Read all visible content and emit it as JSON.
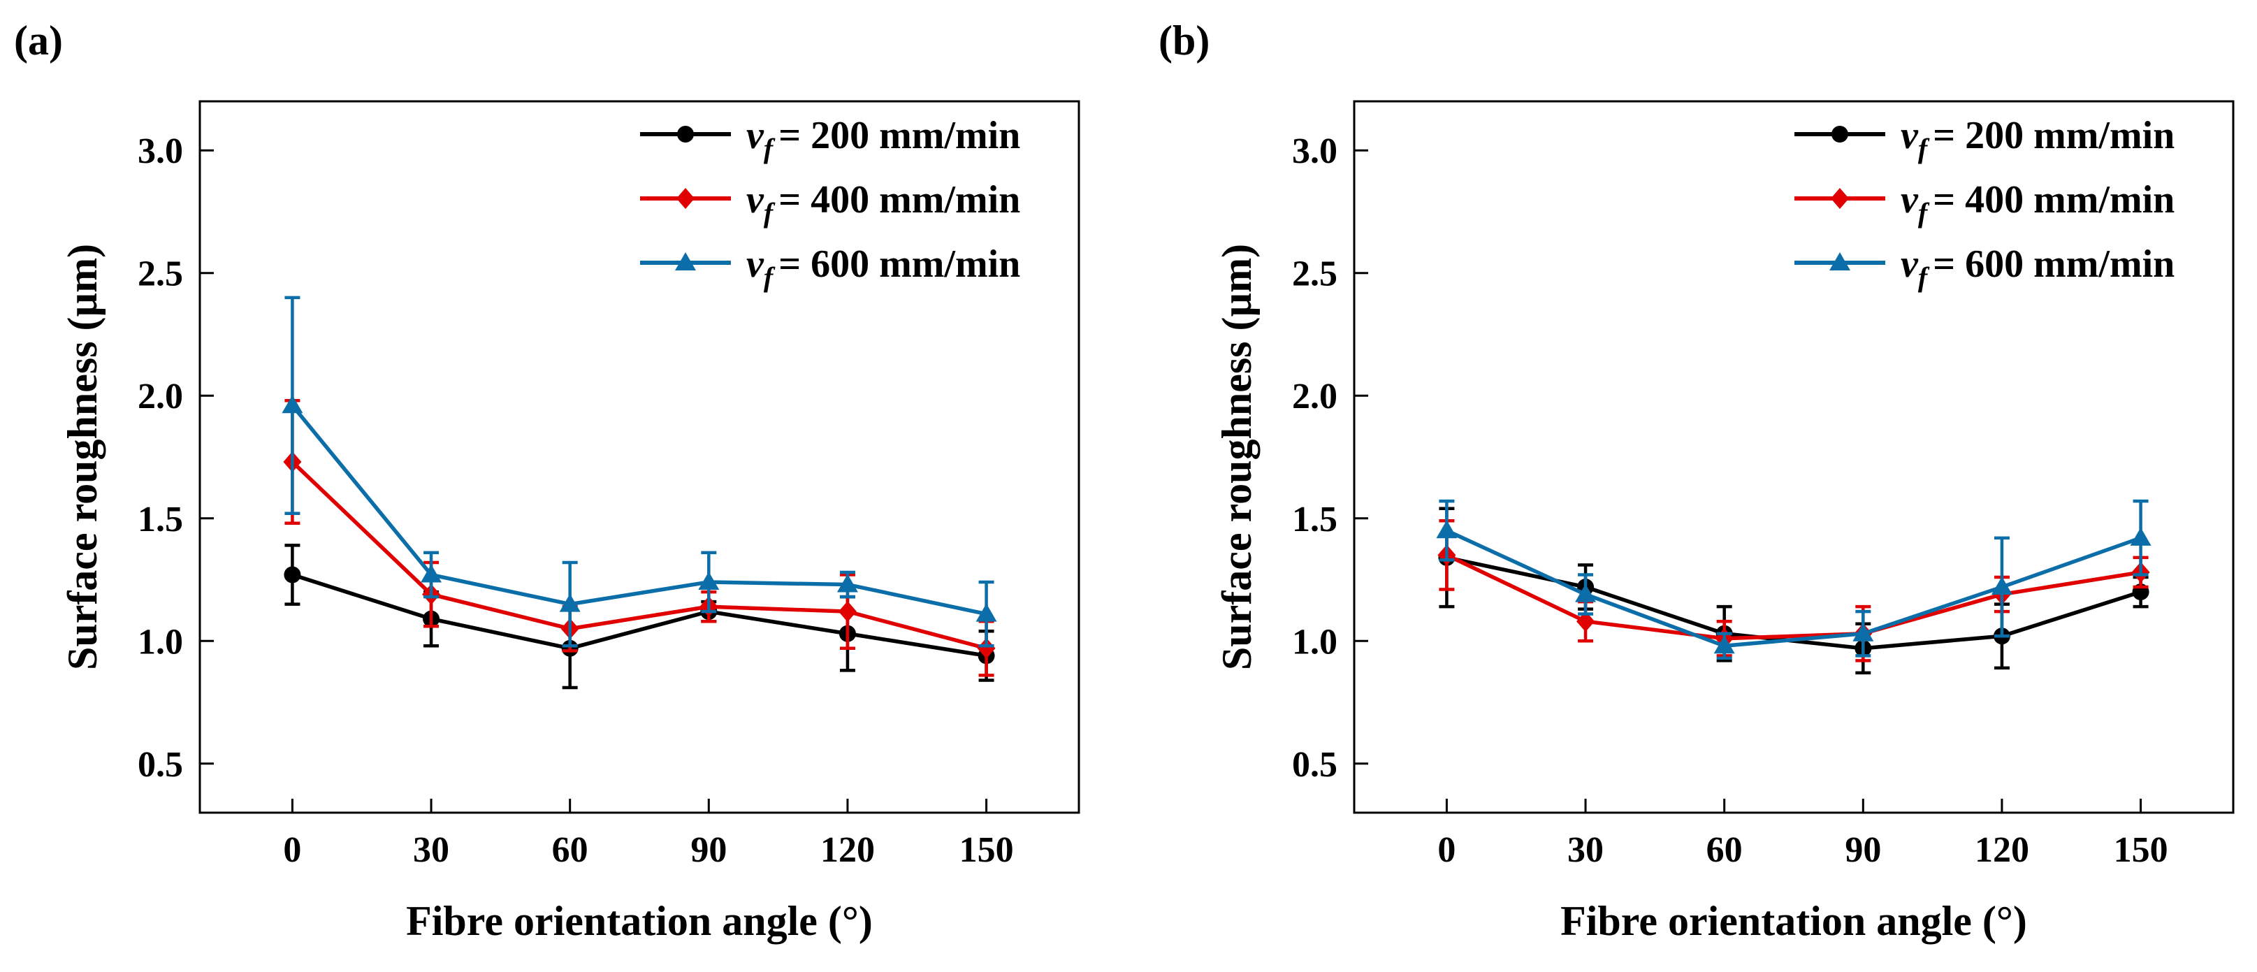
{
  "panels": [
    {
      "label": "(a)",
      "chart_data": {
        "type": "line",
        "xlabel": "Fibre orientation angle (°)",
        "ylabel": "Surface roughness (µm)",
        "x": [
          0,
          30,
          60,
          90,
          120,
          150
        ],
        "xlim": [
          -20,
          170
        ],
        "ylim": [
          0.3,
          3.2
        ],
        "xticks": [
          0,
          30,
          60,
          90,
          120,
          150
        ],
        "yticks": [
          0.5,
          1.0,
          1.5,
          2.0,
          2.5,
          3.0
        ],
        "xtick_labels": [
          "0",
          "30",
          "60",
          "90",
          "120",
          "150"
        ],
        "ytick_labels": [
          "0.5",
          "1.0",
          "1.5",
          "2.0",
          "2.5",
          "3.0"
        ],
        "grid": false,
        "legend_position": "top-right",
        "series": [
          {
            "name": "= 200 mm/min",
            "color": "#000000",
            "marker": "circle",
            "values": [
              1.27,
              1.09,
              0.97,
              1.12,
              1.03,
              0.94
            ],
            "errors": [
              0.12,
              0.11,
              0.16,
              0.04,
              0.15,
              0.1
            ]
          },
          {
            "name": "= 400 mm/min",
            "color": "#e10000",
            "marker": "diamond",
            "values": [
              1.73,
              1.19,
              1.05,
              1.14,
              1.12,
              0.97
            ],
            "errors": [
              0.25,
              0.13,
              0.09,
              0.06,
              0.15,
              0.11
            ]
          },
          {
            "name": "= 600 mm/min",
            "color": "#0c6ea8",
            "marker": "triangle",
            "values": [
              1.96,
              1.27,
              1.15,
              1.24,
              1.23,
              1.11
            ],
            "errors": [
              0.44,
              0.09,
              0.17,
              0.12,
              0.05,
              0.13
            ]
          }
        ]
      }
    },
    {
      "label": "(b)",
      "chart_data": {
        "type": "line",
        "xlabel": "Fibre orientation angle (°)",
        "ylabel": "Surface roughness (µm)",
        "x": [
          0,
          30,
          60,
          90,
          120,
          150
        ],
        "xlim": [
          -20,
          170
        ],
        "ylim": [
          0.3,
          3.2
        ],
        "xticks": [
          0,
          30,
          60,
          90,
          120,
          150
        ],
        "yticks": [
          0.5,
          1.0,
          1.5,
          2.0,
          2.5,
          3.0
        ],
        "xtick_labels": [
          "0",
          "30",
          "60",
          "90",
          "120",
          "150"
        ],
        "ytick_labels": [
          "0.5",
          "1.0",
          "1.5",
          "2.0",
          "2.5",
          "3.0"
        ],
        "grid": false,
        "legend_position": "top-right",
        "series": [
          {
            "name": "= 200 mm/min",
            "color": "#000000",
            "marker": "circle",
            "values": [
              1.34,
              1.22,
              1.03,
              0.97,
              1.02,
              1.2
            ],
            "errors": [
              0.2,
              0.09,
              0.11,
              0.1,
              0.13,
              0.06
            ]
          },
          {
            "name": "= 400 mm/min",
            "color": "#e10000",
            "marker": "diamond",
            "values": [
              1.35,
              1.08,
              1.01,
              1.03,
              1.19,
              1.28
            ],
            "errors": [
              0.14,
              0.08,
              0.07,
              0.11,
              0.07,
              0.06
            ]
          },
          {
            "name": "= 600 mm/min",
            "color": "#0c6ea8",
            "marker": "triangle",
            "values": [
              1.45,
              1.19,
              0.98,
              1.03,
              1.22,
              1.42
            ],
            "errors": [
              0.12,
              0.08,
              0.05,
              0.09,
              0.2,
              0.15
            ]
          }
        ]
      }
    }
  ],
  "legend_symbol": {
    "main": "v",
    "sub": "f"
  }
}
